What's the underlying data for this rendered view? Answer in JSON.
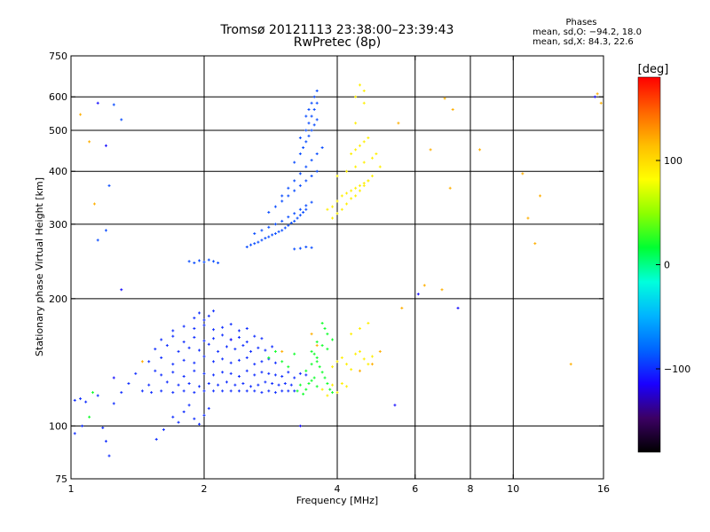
{
  "chart_data": {
    "type": "scatter",
    "title": "Tromsø 20121113 23:38:00–23:39:43",
    "subtitle": "RwPretec (8p)",
    "xlabel": "Frequency [MHz]",
    "ylabel": "Stationary phase Virtual Height [km]",
    "x_scale": "log",
    "y_scale": "log",
    "xlim": [
      1,
      16
    ],
    "ylim": [
      75,
      750
    ],
    "x_ticks": [
      1,
      2,
      4,
      6,
      8,
      10,
      16
    ],
    "x_tick_labels": [
      "1",
      "2",
      "4",
      "6",
      "8",
      "10",
      "16"
    ],
    "y_ticks": [
      75,
      100,
      200,
      300,
      400,
      500,
      600,
      750
    ],
    "y_tick_labels": [
      "75",
      "100",
      "200",
      "300",
      "400",
      "500",
      "600",
      "750"
    ],
    "x_gridlines": [
      2,
      4,
      6,
      8,
      10
    ],
    "y_gridlines": [
      100,
      200,
      300,
      400,
      500,
      600
    ],
    "grid": true,
    "stats": {
      "title": "Phases",
      "line1": "mean, sd,O: −94.2, 18.0",
      "line2": "mean, sd,X:  84.3, 22.6"
    },
    "colorbar": {
      "label": "[deg]",
      "ticks": [
        100,
        0,
        -100
      ],
      "tick_labels": [
        "100",
        "0",
        "−100"
      ],
      "range": [
        -180,
        180
      ],
      "colors": [
        "#000000",
        "#3c0064",
        "#1a00ff",
        "#0064ff",
        "#00b4ff",
        "#00ffdc",
        "#00ff32",
        "#8cff00",
        "#ffff00",
        "#ffbe00",
        "#ff6400",
        "#ff0000"
      ]
    },
    "series": [
      {
        "x": [
          1.02,
          1.05,
          1.08,
          1.25,
          1.3,
          1.45,
          1.52,
          1.6,
          1.7,
          1.8,
          1.9,
          2.0,
          2.1,
          2.2,
          2.3,
          2.4,
          2.5,
          2.6,
          2.7,
          2.8,
          2.9,
          3.0,
          3.1,
          3.2,
          1.15,
          1.35,
          1.5,
          1.65,
          1.75,
          1.85,
          1.95,
          2.05,
          2.15,
          2.25,
          2.35,
          2.45,
          2.55,
          2.65,
          2.75,
          2.85,
          2.95,
          3.05,
          3.15,
          1.4,
          1.55,
          1.6,
          1.7,
          1.8,
          1.9,
          2.0,
          2.1,
          2.2,
          2.3,
          2.4,
          2.5,
          2.6,
          2.7,
          2.8,
          2.9,
          3.0,
          3.1,
          3.2,
          3.3,
          3.4,
          1.5,
          1.6,
          1.7,
          1.8,
          1.9,
          2.0,
          2.1,
          2.2,
          2.3,
          2.4,
          2.5,
          2.6,
          2.7,
          2.8,
          2.9,
          1.55,
          1.65,
          1.75,
          1.85,
          1.95,
          2.05,
          2.15,
          2.25,
          2.35,
          2.45,
          2.55,
          2.65,
          2.75,
          2.85,
          1.6,
          1.7,
          1.8,
          1.9,
          2.0,
          2.1,
          2.2,
          2.3,
          2.4,
          2.5,
          2.6,
          2.7,
          1.7,
          1.8,
          1.9,
          2.0,
          2.1,
          2.2,
          2.3,
          2.4,
          2.5,
          1.9,
          1.95,
          2.0,
          2.05,
          2.1,
          1.02,
          1.06,
          1.18,
          1.22,
          1.56,
          1.62,
          1.2,
          1.7,
          1.75,
          1.8,
          1.85,
          1.9,
          1.95,
          2.0,
          2.05
        ],
        "y": [
          115,
          116,
          114,
          113,
          120,
          121,
          120,
          121,
          120,
          121,
          120,
          121,
          121,
          121,
          121,
          121,
          121,
          121,
          120,
          121,
          120,
          121,
          121,
          121,
          118,
          126,
          125,
          127,
          125,
          126,
          124,
          126,
          125,
          127,
          125,
          126,
          124,
          125,
          127,
          126,
          125,
          126,
          125,
          133,
          135,
          132,
          134,
          131,
          135,
          133,
          132,
          134,
          133,
          131,
          135,
          132,
          134,
          133,
          132,
          131,
          134,
          130,
          133,
          132,
          142,
          145,
          140,
          143,
          141,
          146,
          142,
          144,
          141,
          143,
          145,
          140,
          142,
          144,
          141,
          152,
          155,
          150,
          153,
          151,
          156,
          150,
          154,
          152,
          155,
          150,
          153,
          151,
          154,
          160,
          163,
          158,
          162,
          159,
          161,
          164,
          160,
          162,
          158,
          163,
          161,
          168,
          172,
          170,
          173,
          169,
          171,
          174,
          168,
          170,
          180,
          185,
          178,
          182,
          187,
          96,
          100,
          99,
          85,
          93,
          98,
          92,
          105,
          102,
          108,
          112,
          104,
          101,
          106,
          110
        ],
        "phase": -100
      },
      {
        "x": [
          2.5,
          2.55,
          2.6,
          2.65,
          2.7,
          2.75,
          2.8,
          2.85,
          2.9,
          2.95,
          3.0,
          3.05,
          3.1,
          3.15,
          3.2,
          3.25,
          3.3,
          3.35,
          3.4,
          2.6,
          2.7,
          2.8,
          2.9,
          3.0,
          3.1,
          3.2,
          3.3,
          3.4,
          3.5,
          2.8,
          2.9,
          3.0,
          3.1,
          3.2,
          3.3,
          3.4,
          3.5,
          3.6,
          3.0,
          3.1,
          3.2,
          3.3,
          3.4,
          3.5,
          3.6,
          3.7,
          3.2,
          3.3,
          3.35,
          3.4,
          3.45,
          3.5,
          3.55,
          3.6,
          3.3,
          3.4,
          3.45,
          3.5,
          3.55,
          3.6,
          3.4,
          3.45,
          3.5,
          3.55,
          3.6,
          1.85,
          1.9,
          1.95,
          2.0,
          2.05,
          2.1,
          2.15,
          1.25,
          1.3,
          1.15,
          1.2,
          1.22,
          3.2,
          3.3,
          3.4,
          3.5
        ],
        "y": [
          265,
          268,
          270,
          272,
          275,
          278,
          280,
          283,
          285,
          288,
          290,
          294,
          298,
          302,
          305,
          310,
          315,
          320,
          325,
          285,
          290,
          295,
          300,
          305,
          312,
          318,
          325,
          332,
          338,
          320,
          330,
          340,
          350,
          360,
          370,
          380,
          390,
          400,
          350,
          365,
          380,
          395,
          410,
          425,
          440,
          455,
          420,
          440,
          455,
          470,
          485,
          500,
          515,
          530,
          480,
          500,
          520,
          540,
          560,
          580,
          540,
          560,
          580,
          600,
          620,
          245,
          243,
          246,
          244,
          247,
          245,
          243,
          575,
          530,
          275,
          290,
          370,
          262,
          263,
          265,
          264
        ],
        "phase": -90
      },
      {
        "x": [
          3.3,
          3.4,
          3.5,
          3.6,
          3.55,
          3.45,
          3.35,
          3.25,
          3.4,
          3.5,
          3.6,
          3.5,
          3.55,
          3.6,
          3.65,
          3.7,
          3.75,
          3.8,
          3.85,
          3.9,
          3.6,
          3.7,
          3.8,
          3.9,
          3.7,
          3.75,
          3.8,
          2.8,
          2.9,
          3.0,
          3.1,
          3.2,
          1.1,
          1.12
        ],
        "y": [
          125,
          122,
          128,
          124,
          130,
          126,
          119,
          121,
          135,
          140,
          145,
          150,
          148,
          142,
          138,
          134,
          130,
          126,
          122,
          120,
          158,
          155,
          152,
          160,
          175,
          170,
          165,
          145,
          150,
          142,
          138,
          148,
          105,
          120
        ],
        "phase": 20
      },
      {
        "x": [
          3.8,
          3.9,
          4.0,
          4.1,
          4.2,
          4.3,
          4.4,
          4.5,
          4.6,
          4.7,
          3.9,
          4.0,
          4.1,
          4.2,
          4.3,
          4.4,
          4.5,
          4.6,
          4.7,
          4.8,
          4.0,
          4.2,
          4.4,
          4.6,
          4.8,
          4.9,
          5.0,
          4.3,
          4.4,
          4.5,
          4.6,
          4.7,
          3.9,
          4.0,
          4.1,
          4.2,
          4.3,
          4.4,
          4.5,
          4.6,
          4.7,
          4.8,
          4.3,
          4.5,
          4.7,
          4.4,
          4.6,
          4.5,
          4.6,
          4.4,
          3.7,
          3.8,
          3.9,
          4.0,
          4.1,
          4.2
        ],
        "y": [
          325,
          330,
          340,
          350,
          355,
          360,
          365,
          370,
          375,
          380,
          310,
          318,
          325,
          335,
          345,
          350,
          360,
          370,
          380,
          390,
          390,
          400,
          410,
          420,
          430,
          440,
          410,
          440,
          450,
          460,
          470,
          480,
          138,
          142,
          145,
          140,
          136,
          148,
          150,
          144,
          140,
          146,
          165,
          170,
          175,
          600,
          580,
          640,
          620,
          520,
          122,
          118,
          125,
          120,
          126,
          124
        ],
        "phase": 90
      },
      {
        "x": [
          1.05,
          1.1,
          1.13,
          1.45,
          3.0,
          3.5,
          3.6,
          4.5,
          4.8,
          5.0,
          5.6,
          6.3,
          6.5,
          7.0,
          7.2,
          7.3,
          8.4,
          10.5,
          11.5,
          13.5,
          15.5,
          15.8,
          5.5,
          10.8,
          11.2,
          6.9
        ],
        "y": [
          545,
          470,
          335,
          142,
          150,
          165,
          155,
          135,
          140,
          150,
          190,
          215,
          450,
          595,
          365,
          560,
          450,
          395,
          350,
          140,
          610,
          580,
          520,
          310,
          270,
          210
        ],
        "phase": 120
      },
      {
        "x": [
          1.15,
          1.3,
          1.2,
          1.25,
          2.3,
          5.4,
          3.3,
          6.1,
          7.5,
          15.3
        ],
        "y": [
          580,
          210,
          460,
          130,
          160,
          112,
          100,
          205,
          190,
          600
        ],
        "phase": -110
      }
    ]
  }
}
